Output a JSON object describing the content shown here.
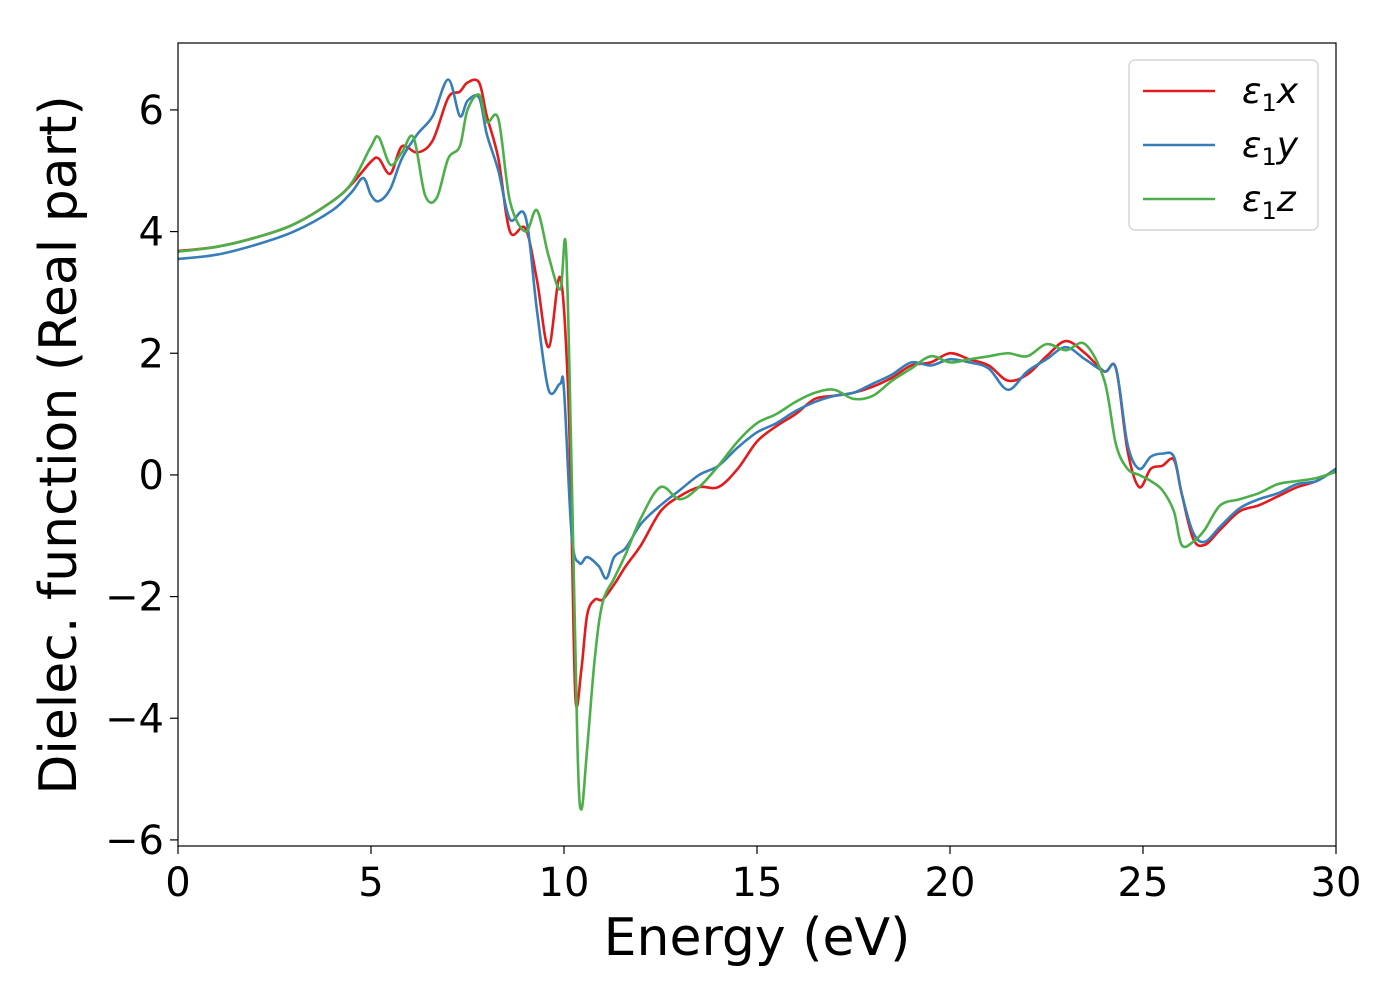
{
  "chart_data": {
    "type": "line",
    "xlabel": "Energy (eV)",
    "ylabel": "Dielec. function (Real part)",
    "xlim": [
      0,
      30
    ],
    "ylim": [
      -6.1,
      7.1
    ],
    "xticks": [
      0,
      5,
      10,
      15,
      20,
      25,
      30
    ],
    "yticks": [
      -6,
      -4,
      -2,
      0,
      2,
      4,
      6
    ],
    "ytick_labels": [
      "−6",
      "−4",
      "−2",
      "0",
      "2",
      "4",
      "6"
    ],
    "grid": false,
    "legend_position": "top-right",
    "series": [
      {
        "name": "ε₁x",
        "legend_base": "ε",
        "legend_sub": "1",
        "legend_var": "x",
        "color": "#e41a1c",
        "x": [
          0,
          1,
          2,
          3,
          4,
          4.5,
          5,
          5.2,
          5.5,
          5.8,
          6.2,
          6.6,
          7.0,
          7.3,
          7.5,
          7.8,
          8.0,
          8.3,
          8.6,
          9.0,
          9.3,
          9.6,
          9.9,
          10.1,
          10.2,
          10.3,
          10.45,
          10.6,
          10.8,
          11.0,
          11.3,
          11.6,
          12.0,
          12.5,
          13.0,
          13.5,
          14.0,
          14.5,
          15.0,
          15.5,
          16.0,
          16.5,
          17.0,
          17.5,
          18.0,
          18.5,
          19.0,
          19.5,
          20.0,
          20.5,
          21.0,
          21.5,
          22.0,
          22.5,
          23.0,
          23.5,
          24.0,
          24.3,
          24.6,
          24.9,
          25.2,
          25.5,
          25.8,
          26.0,
          26.3,
          26.6,
          27.0,
          27.5,
          28.0,
          28.5,
          29.0,
          29.5,
          30.0
        ],
        "y": [
          3.68,
          3.75,
          3.9,
          4.12,
          4.5,
          4.78,
          5.15,
          5.2,
          4.95,
          5.4,
          5.3,
          5.5,
          6.2,
          6.3,
          6.45,
          6.45,
          5.9,
          5.2,
          4.0,
          4.05,
          3.2,
          2.1,
          3.25,
          1.5,
          -1.0,
          -3.7,
          -3.2,
          -2.3,
          -2.05,
          -2.05,
          -1.8,
          -1.5,
          -1.15,
          -0.6,
          -0.35,
          -0.2,
          -0.2,
          0.1,
          0.55,
          0.8,
          1.0,
          1.25,
          1.3,
          1.35,
          1.45,
          1.6,
          1.8,
          1.85,
          2.0,
          1.9,
          1.8,
          1.55,
          1.65,
          1.95,
          2.2,
          2.0,
          1.7,
          1.75,
          0.4,
          -0.2,
          0.1,
          0.15,
          0.25,
          -0.3,
          -1.05,
          -1.15,
          -0.9,
          -0.6,
          -0.5,
          -0.35,
          -0.2,
          -0.1,
          0.1
        ]
      },
      {
        "name": "ε₁y",
        "legend_base": "ε",
        "legend_sub": "1",
        "legend_var": "y",
        "color": "#377eb8",
        "x": [
          0,
          1,
          2,
          3,
          4,
          4.5,
          4.8,
          5.0,
          5.2,
          5.5,
          5.8,
          6.2,
          6.6,
          7.0,
          7.3,
          7.5,
          7.8,
          8.0,
          8.3,
          8.6,
          9.0,
          9.3,
          9.6,
          9.9,
          10.0,
          10.2,
          10.4,
          10.6,
          10.9,
          11.1,
          11.3,
          11.6,
          12.0,
          12.5,
          13.0,
          13.5,
          14.0,
          14.5,
          15.0,
          15.5,
          16.0,
          16.5,
          17.0,
          17.5,
          18.0,
          18.5,
          19.0,
          19.5,
          20.0,
          20.5,
          21.0,
          21.5,
          22.0,
          22.5,
          23.0,
          23.5,
          24.0,
          24.3,
          24.6,
          24.9,
          25.2,
          25.5,
          25.8,
          26.0,
          26.3,
          26.6,
          27.0,
          27.5,
          28.0,
          28.5,
          29.0,
          29.5,
          30.0
        ],
        "y": [
          3.55,
          3.62,
          3.78,
          4.0,
          4.35,
          4.65,
          4.88,
          4.6,
          4.5,
          4.7,
          5.2,
          5.6,
          5.9,
          6.5,
          5.9,
          6.15,
          6.2,
          5.6,
          5.0,
          4.2,
          4.25,
          2.7,
          1.4,
          1.5,
          1.4,
          -1.0,
          -1.45,
          -1.35,
          -1.5,
          -1.7,
          -1.35,
          -1.2,
          -0.8,
          -0.5,
          -0.25,
          0.0,
          0.15,
          0.45,
          0.7,
          0.85,
          1.05,
          1.2,
          1.3,
          1.35,
          1.5,
          1.65,
          1.85,
          1.8,
          1.9,
          1.85,
          1.75,
          1.4,
          1.7,
          1.9,
          2.1,
          1.9,
          1.7,
          1.75,
          0.5,
          0.1,
          0.3,
          0.35,
          0.3,
          -0.3,
          -0.95,
          -1.1,
          -0.85,
          -0.55,
          -0.4,
          -0.3,
          -0.15,
          -0.1,
          0.1
        ]
      },
      {
        "name": "ε₁z",
        "legend_base": "ε",
        "legend_sub": "1",
        "legend_var": "z",
        "color": "#4daf4a",
        "x": [
          0,
          1,
          2,
          3,
          4,
          4.5,
          5.0,
          5.2,
          5.5,
          5.8,
          6.1,
          6.4,
          6.7,
          7.0,
          7.3,
          7.5,
          7.8,
          8.0,
          8.3,
          8.6,
          9.0,
          9.3,
          9.6,
          9.9,
          10.05,
          10.2,
          10.35,
          10.45,
          10.6,
          10.8,
          11.0,
          11.3,
          11.6,
          12.0,
          12.5,
          13.0,
          13.5,
          14.0,
          14.5,
          15.0,
          15.5,
          16.0,
          16.5,
          17.0,
          17.5,
          18.0,
          18.5,
          19.0,
          19.5,
          20.0,
          20.5,
          21.0,
          21.5,
          22.0,
          22.5,
          23.0,
          23.5,
          24.0,
          24.3,
          24.6,
          24.9,
          25.2,
          25.5,
          25.8,
          26.0,
          26.3,
          26.6,
          27.0,
          27.5,
          28.0,
          28.5,
          29.0,
          29.5,
          30.0
        ],
        "y": [
          3.67,
          3.75,
          3.9,
          4.12,
          4.5,
          4.8,
          5.4,
          5.55,
          5.1,
          5.3,
          5.55,
          4.6,
          4.55,
          5.2,
          5.4,
          6.0,
          6.25,
          5.8,
          5.85,
          4.5,
          4.0,
          4.35,
          3.6,
          3.05,
          3.75,
          0.0,
          -4.5,
          -5.5,
          -4.5,
          -3.0,
          -2.1,
          -1.7,
          -1.3,
          -0.7,
          -0.2,
          -0.4,
          -0.2,
          0.15,
          0.55,
          0.85,
          1.0,
          1.2,
          1.35,
          1.4,
          1.25,
          1.3,
          1.55,
          1.75,
          1.95,
          1.85,
          1.9,
          1.95,
          2.0,
          1.95,
          2.15,
          2.05,
          2.15,
          1.55,
          0.5,
          0.1,
          0.0,
          -0.1,
          -0.25,
          -0.6,
          -1.15,
          -1.1,
          -0.9,
          -0.5,
          -0.4,
          -0.3,
          -0.15,
          -0.1,
          -0.05,
          0.05
        ]
      }
    ]
  }
}
